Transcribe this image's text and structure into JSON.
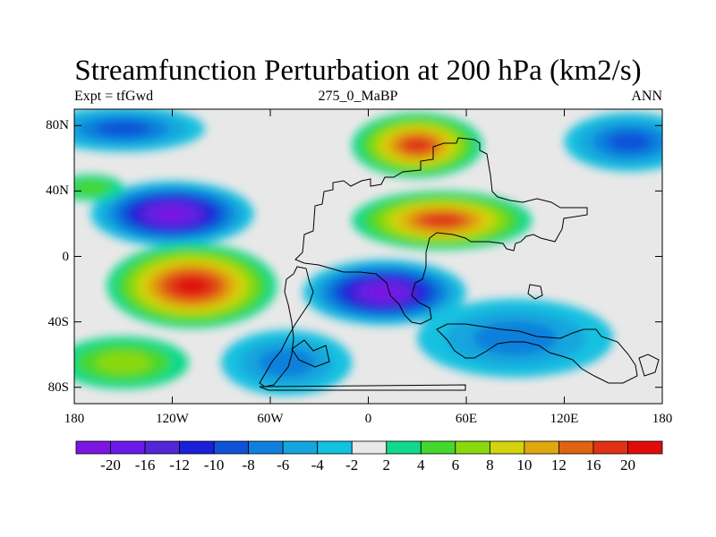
{
  "chart_data": {
    "type": "heatmap",
    "title": "Streamfunction Perturbation at 200 hPa (km2/s)",
    "left_label": "Expt = tfGwd",
    "center_label": "275_0_MaBP",
    "right_label": "ANN",
    "x_ticks": [
      {
        "value": -180,
        "label": "180"
      },
      {
        "value": -120,
        "label": "120W"
      },
      {
        "value": -60,
        "label": "60W"
      },
      {
        "value": 0,
        "label": "0"
      },
      {
        "value": 60,
        "label": "60E"
      },
      {
        "value": 120,
        "label": "120E"
      },
      {
        "value": 180,
        "label": "180"
      }
    ],
    "y_ticks": [
      {
        "value": 80,
        "label": "80N"
      },
      {
        "value": 40,
        "label": "40N"
      },
      {
        "value": 0,
        "label": "0"
      },
      {
        "value": -40,
        "label": "40S"
      },
      {
        "value": -80,
        "label": "80S"
      }
    ],
    "xlim": [
      -180,
      180
    ],
    "ylim": [
      -90,
      90
    ],
    "colorbar": {
      "levels": [
        "-20",
        "-16",
        "-12",
        "-10",
        "-8",
        "-6",
        "-4",
        "-2",
        "2",
        "4",
        "6",
        "8",
        "10",
        "12",
        "16",
        "20"
      ],
      "colors": [
        "#7b17e0",
        "#6a1be8",
        "#5227d8",
        "#1b1fd8",
        "#0f52d8",
        "#1180dc",
        "#15a5dd",
        "#13c1e0",
        "#e8e8e8",
        "#10d98a",
        "#44d72d",
        "#8ad80e",
        "#d2d30c",
        "#e0a80d",
        "#e06312",
        "#e03214",
        "#e00c0c"
      ]
    },
    "features": [
      {
        "name": "cyclone-north-pacific-west",
        "lon": -120,
        "lat": 26,
        "rx": 50,
        "ry": 20,
        "value": -21
      },
      {
        "name": "anticyclone-south-pacific-east",
        "lon": -108,
        "lat": -18,
        "rx": 52,
        "ry": 26,
        "value": 21
      },
      {
        "name": "anticyclone-north-atlantic-high",
        "lon": 30,
        "lat": 68,
        "rx": 40,
        "ry": 20,
        "value": 16
      },
      {
        "name": "anticyclone-eurasia-tropical",
        "lon": 45,
        "lat": 22,
        "rx": 55,
        "ry": 18,
        "value": 17
      },
      {
        "name": "cyclone-tropical-africa",
        "lon": 10,
        "lat": -22,
        "rx": 50,
        "ry": 20,
        "value": -21
      },
      {
        "name": "cyclone-arctic-pacific",
        "lon": -150,
        "lat": 78,
        "rx": 50,
        "ry": 14,
        "value": -9
      },
      {
        "name": "cyclone-north-pacific-east",
        "lon": 160,
        "lat": 70,
        "rx": 40,
        "ry": 18,
        "value": -9
      },
      {
        "name": "cyclone-south-indian-ocean",
        "lon": 90,
        "lat": -50,
        "rx": 60,
        "ry": 24,
        "value": -7
      },
      {
        "name": "cyclone-south-america",
        "lon": -50,
        "lat": -65,
        "rx": 40,
        "ry": 20,
        "value": -6
      },
      {
        "name": "anticyclone-southern-ocean",
        "lon": -150,
        "lat": -65,
        "rx": 40,
        "ry": 16,
        "value": 6
      },
      {
        "name": "anticyclone-north-atlantic-west",
        "lon": -170,
        "lat": 42,
        "rx": 20,
        "ry": 8,
        "value": 5
      }
    ]
  }
}
